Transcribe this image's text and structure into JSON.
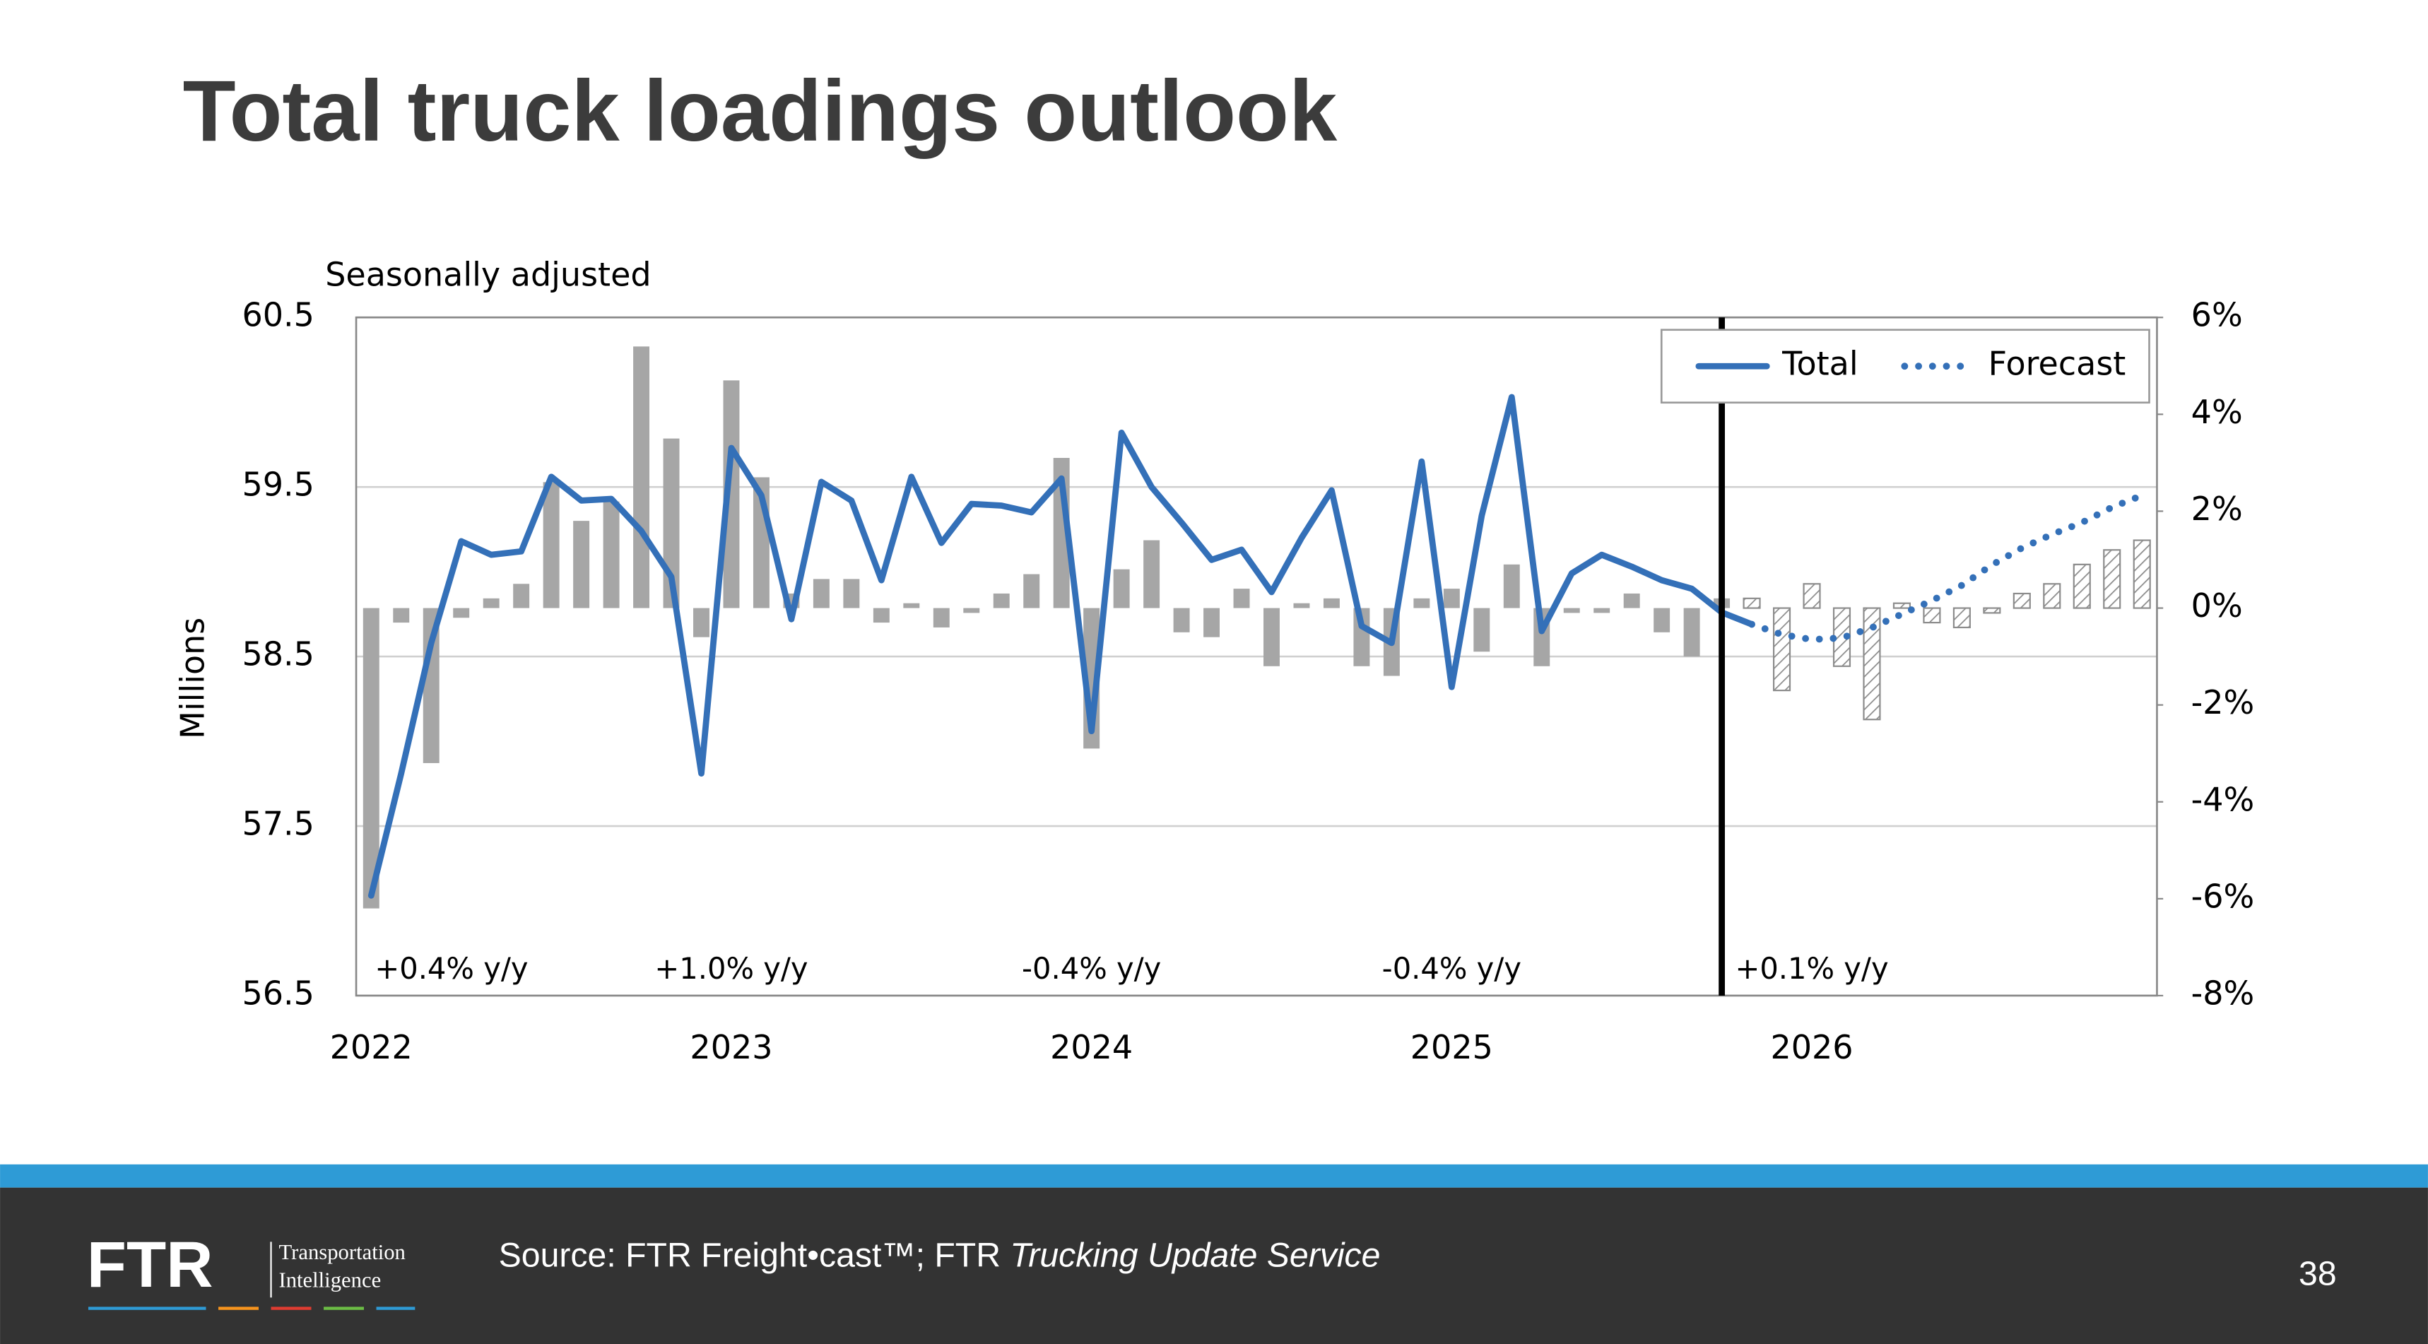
{
  "chart_data": {
    "type": "combo",
    "title": "Total truck loadings outlook",
    "subtitle": "Seasonally adjusted",
    "y_label": "Millions",
    "categories": [
      "2022",
      null,
      null,
      null,
      null,
      null,
      null,
      null,
      null,
      null,
      null,
      null,
      "2023",
      null,
      null,
      null,
      null,
      null,
      null,
      null,
      null,
      null,
      null,
      null,
      "2024",
      null,
      null,
      null,
      null,
      null,
      null,
      null,
      null,
      null,
      null,
      null,
      "2025",
      null,
      null,
      null,
      null,
      null,
      null,
      null,
      null,
      null,
      null,
      null,
      "2026",
      null,
      null,
      null,
      null,
      null,
      null,
      null,
      null,
      null,
      null,
      null
    ],
    "ylim": [
      56.5,
      60.5
    ],
    "yticks": [
      56.5,
      57.5,
      58.5,
      59.5,
      60.5
    ],
    "y2lim": [
      -8,
      6
    ],
    "y2ticks": [
      {
        "value": -8,
        "label": "-8%"
      },
      {
        "value": -6,
        "label": "-6%"
      },
      {
        "value": -4,
        "label": "-4%"
      },
      {
        "value": -2,
        "label": "-2%"
      },
      {
        "value": 0,
        "label": "0%"
      },
      {
        "value": 2,
        "label": "2%"
      },
      {
        "value": 4,
        "label": "4%"
      },
      {
        "value": 6,
        "label": "6%"
      }
    ],
    "grid": true,
    "legend": "upper right",
    "series": [
      {
        "name": "Total",
        "color": "#3470b8",
        "style": "solid",
        "values": [
          57.09,
          57.81,
          58.58,
          59.18,
          59.1,
          59.12,
          59.56,
          59.42,
          59.43,
          59.24,
          58.97,
          57.81,
          59.73,
          59.45,
          58.72,
          59.53,
          59.42,
          58.95,
          59.56,
          59.17,
          59.4,
          59.39,
          59.35,
          59.55,
          58.06,
          59.82,
          59.5,
          59.29,
          59.07,
          59.13,
          58.88,
          59.2,
          59.48,
          58.68,
          58.58,
          59.65,
          58.32,
          59.33,
          60.03,
          58.65,
          58.99,
          59.1,
          59.03,
          58.95,
          58.9,
          58.76,
          58.69,
          null,
          null,
          null,
          null,
          null,
          null,
          null,
          null,
          null,
          null,
          null,
          null,
          null
        ]
      },
      {
        "name": "Forecast",
        "color": "#3470b8",
        "style": "dotted",
        "values": [
          null,
          null,
          null,
          null,
          null,
          null,
          null,
          null,
          null,
          null,
          null,
          null,
          null,
          null,
          null,
          null,
          null,
          null,
          null,
          null,
          null,
          null,
          null,
          null,
          null,
          null,
          null,
          null,
          null,
          null,
          null,
          null,
          null,
          null,
          null,
          null,
          null,
          null,
          null,
          null,
          null,
          null,
          null,
          null,
          null,
          null,
          58.69,
          58.63,
          58.6,
          58.61,
          58.67,
          58.75,
          58.83,
          58.92,
          59.04,
          59.14,
          59.22,
          59.29,
          59.38,
          59.45
        ]
      }
    ],
    "bar_series": [
      {
        "axis": "y2",
        "color": "#a6a6a6",
        "pattern": "solid",
        "values": [
          -6.2,
          -0.3,
          -3.2,
          -0.2,
          0.2,
          0.5,
          2.6,
          1.8,
          2.2,
          5.4,
          3.5,
          -0.6,
          4.7,
          2.7,
          0.3,
          0.6,
          0.6,
          -0.3,
          0.1,
          -0.4,
          -0.1,
          0.3,
          0.7,
          3.1,
          -2.9,
          0.8,
          1.4,
          -0.5,
          -0.6,
          0.4,
          -1.2,
          0.1,
          0.2,
          -1.2,
          -1.4,
          0.2,
          0.4,
          -0.9,
          0.9,
          -1.2,
          -0.1,
          -0.1,
          0.3,
          -0.5,
          -1.0,
          0.2,
          null,
          null,
          null,
          null,
          null,
          null,
          null,
          null,
          null,
          null,
          null,
          null,
          null,
          null
        ]
      },
      {
        "axis": "y2",
        "color": "#8c8c8c",
        "pattern": "hatch",
        "values": [
          null,
          null,
          null,
          null,
          null,
          null,
          null,
          null,
          null,
          null,
          null,
          null,
          null,
          null,
          null,
          null,
          null,
          null,
          null,
          null,
          null,
          null,
          null,
          null,
          null,
          null,
          null,
          null,
          null,
          null,
          null,
          null,
          null,
          null,
          null,
          null,
          null,
          null,
          null,
          null,
          null,
          null,
          null,
          null,
          null,
          null,
          0.2,
          -1.7,
          0.5,
          -1.2,
          -2.3,
          0.1,
          -0.3,
          -0.4,
          -0.1,
          0.3,
          0.5,
          0.9,
          1.2,
          1.4
        ]
      }
    ],
    "annotations": [
      {
        "text": "+0.4% y/y",
        "color": "#000000"
      },
      {
        "text": "+1.0% y/y",
        "color": "#000000"
      },
      {
        "text": "-0.4% y/y",
        "color": "#c00000"
      },
      {
        "text": "-0.4% y/y",
        "color": "#c00000"
      },
      {
        "text": "+0.1% y/y",
        "color": "#000000"
      }
    ]
  },
  "footer": {
    "logo": {
      "mark": "FTR",
      "line1": "Transportation",
      "line2": "Intelligence"
    },
    "source_prefix": "Source: FTR Freight•cast™; FTR ",
    "source_italic": "Trucking Update Service",
    "page_number": "38"
  }
}
